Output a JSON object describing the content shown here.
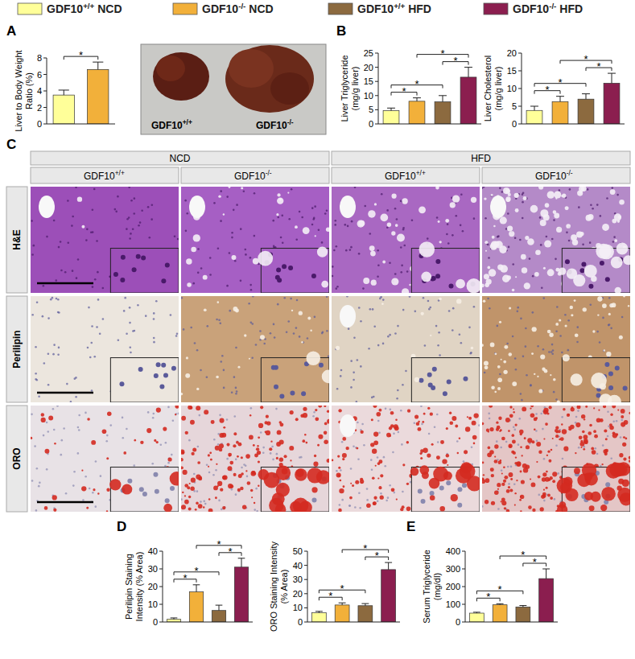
{
  "legend": [
    {
      "name": "GDF10+/+ NCD",
      "color": "#ffff99"
    },
    {
      "name": "GDF10-/- NCD",
      "color": "#f2b03a"
    },
    {
      "name": "GDF10+/+ HFD",
      "color": "#8c6a3f"
    },
    {
      "name": "GDF10-/- HFD",
      "color": "#8b1e4f"
    }
  ],
  "panels": [
    "A",
    "B",
    "C",
    "D",
    "E"
  ],
  "photo_labels": [
    "GDF10+/+",
    "GDF10-/-"
  ],
  "histology": {
    "diets": [
      "NCD",
      "HFD"
    ],
    "genotypes": [
      "GDF10+/+",
      "GDF10-/-"
    ],
    "stains": [
      "H&E",
      "Perilipin",
      "ORO"
    ]
  },
  "chart_data": [
    {
      "type": "bar",
      "ylabel": [
        "Liver to Body Weight",
        "Ratio (%)"
      ],
      "categories": [
        null,
        null
      ],
      "values": [
        3.5,
        6.6
      ],
      "error": [
        0.6,
        0.9
      ],
      "colors": [
        "#ffff99",
        "#f2b03a"
      ],
      "ylim": [
        0,
        8
      ],
      "yticks": [
        0,
        2,
        4,
        6,
        8
      ],
      "annotations": [
        {
          "from": 0,
          "to": 1,
          "text": "*"
        }
      ]
    },
    {
      "type": "bar",
      "ylabel": [
        "Liver Triglyceride",
        "(mg/g liver)"
      ],
      "categories": [
        null,
        null,
        null,
        null
      ],
      "values": [
        4.7,
        8.0,
        7.8,
        16.5
      ],
      "error": [
        0.9,
        1.2,
        2.2,
        3.5
      ],
      "colors": [
        "#ffff99",
        "#f2b03a",
        "#8c6a3f",
        "#8b1e4f"
      ],
      "ylim": [
        0,
        25
      ],
      "yticks": [
        0,
        5,
        10,
        15,
        20,
        25
      ],
      "annotations": [
        {
          "from": 0,
          "to": 1,
          "text": "*"
        },
        {
          "from": 0,
          "to": 2,
          "text": "*"
        },
        {
          "from": 2,
          "to": 3,
          "text": "*"
        },
        {
          "from": 1,
          "to": 3,
          "text": "*"
        }
      ]
    },
    {
      "type": "bar",
      "ylabel": [
        "Liver Cholesterol",
        "(mg/g liver)"
      ],
      "categories": [
        null,
        null,
        null,
        null
      ],
      "values": [
        3.8,
        6.3,
        7.0,
        11.5
      ],
      "error": [
        1.2,
        1.5,
        1.5,
        2.8
      ],
      "colors": [
        "#ffff99",
        "#f2b03a",
        "#8c6a3f",
        "#8b1e4f"
      ],
      "ylim": [
        0,
        20
      ],
      "yticks": [
        0,
        5,
        10,
        15,
        20
      ],
      "annotations": [
        {
          "from": 0,
          "to": 1,
          "text": "*"
        },
        {
          "from": 0,
          "to": 2,
          "text": "*"
        },
        {
          "from": 2,
          "to": 3,
          "text": "*"
        },
        {
          "from": 1,
          "to": 3,
          "text": "*"
        }
      ]
    },
    {
      "type": "bar",
      "ylabel": [
        "Perilipin Staining",
        "Intensity (% Area)"
      ],
      "categories": [
        null,
        null,
        null,
        null
      ],
      "values": [
        1.5,
        17,
        6.5,
        31
      ],
      "error": [
        0.8,
        4,
        3,
        5
      ],
      "colors": [
        "#ffff99",
        "#f2b03a",
        "#8c6a3f",
        "#8b1e4f"
      ],
      "ylim": [
        0,
        40
      ],
      "yticks": [
        0,
        10,
        20,
        30,
        40
      ],
      "annotations": [
        {
          "from": 0,
          "to": 1,
          "text": "*"
        },
        {
          "from": 0,
          "to": 2,
          "text": "*"
        },
        {
          "from": 2,
          "to": 3,
          "text": "*"
        },
        {
          "from": 1,
          "to": 3,
          "text": "*"
        }
      ]
    },
    {
      "type": "bar",
      "ylabel": [
        "ORO Staining Intensity",
        "(% Area)"
      ],
      "categories": [
        null,
        null,
        null,
        null
      ],
      "values": [
        6.5,
        12,
        11.5,
        37
      ],
      "error": [
        1,
        1.5,
        1.5,
        5
      ],
      "colors": [
        "#ffff99",
        "#f2b03a",
        "#8c6a3f",
        "#8b1e4f"
      ],
      "ylim": [
        0,
        50
      ],
      "yticks": [
        0,
        10,
        20,
        30,
        40,
        50
      ],
      "annotations": [
        {
          "from": 0,
          "to": 1,
          "text": "*"
        },
        {
          "from": 0,
          "to": 2,
          "text": "*"
        },
        {
          "from": 2,
          "to": 3,
          "text": "*"
        },
        {
          "from": 1,
          "to": 3,
          "text": "*"
        }
      ]
    },
    {
      "type": "bar",
      "ylabel": [
        "Serum Triglyceride",
        "(mg/dl)"
      ],
      "categories": [
        null,
        null,
        null,
        null
      ],
      "values": [
        50,
        97,
        85,
        245
      ],
      "error": [
        5,
        6,
        8,
        55
      ],
      "colors": [
        "#ffff99",
        "#f2b03a",
        "#8c6a3f",
        "#8b1e4f"
      ],
      "ylim": [
        0,
        400
      ],
      "yticks": [
        0,
        100,
        200,
        300,
        400
      ],
      "annotations": [
        {
          "from": 0,
          "to": 1,
          "text": "*"
        },
        {
          "from": 0,
          "to": 2,
          "text": "*"
        },
        {
          "from": 2,
          "to": 3,
          "text": "*"
        },
        {
          "from": 1,
          "to": 3,
          "text": "*"
        }
      ]
    }
  ]
}
